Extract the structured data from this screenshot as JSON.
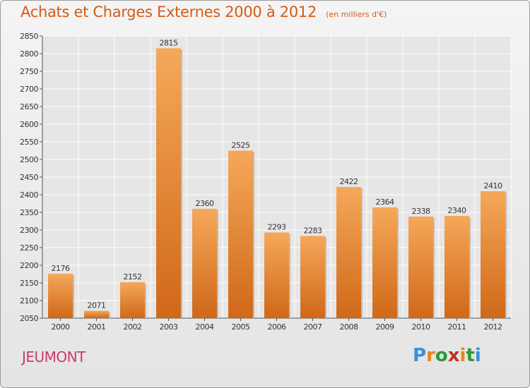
{
  "header": {
    "title": "Achats et Charges Externes 2000 à 2012",
    "subtitle": "(en milliers d'€)"
  },
  "place": "JEUMONT",
  "logo": {
    "letters": [
      "P",
      "r",
      "o",
      "x",
      "i",
      "t",
      "i"
    ],
    "colors": [
      "#3a8fd8",
      "#e8861a",
      "#2a9a3a",
      "#c0312b",
      "#e8861a",
      "#2a9a3a",
      "#3a8fd8"
    ]
  },
  "colors": {
    "bar_light": "#f5a85a",
    "bar_dark": "#d06818",
    "title": "#d65a17",
    "grid": "#ffffff"
  },
  "chart_data": {
    "type": "bar",
    "categories": [
      "2000",
      "2001",
      "2002",
      "2003",
      "2004",
      "2005",
      "2006",
      "2007",
      "2008",
      "2009",
      "2010",
      "2011",
      "2012"
    ],
    "values": [
      2176,
      2071,
      2152,
      2815,
      2360,
      2525,
      2293,
      2283,
      2422,
      2364,
      2338,
      2340,
      2410
    ],
    "ylim": [
      2050,
      2850
    ],
    "yticks": [
      2050,
      2100,
      2150,
      2200,
      2250,
      2300,
      2350,
      2400,
      2450,
      2500,
      2550,
      2600,
      2650,
      2700,
      2750,
      2800,
      2850
    ],
    "grid": true
  }
}
